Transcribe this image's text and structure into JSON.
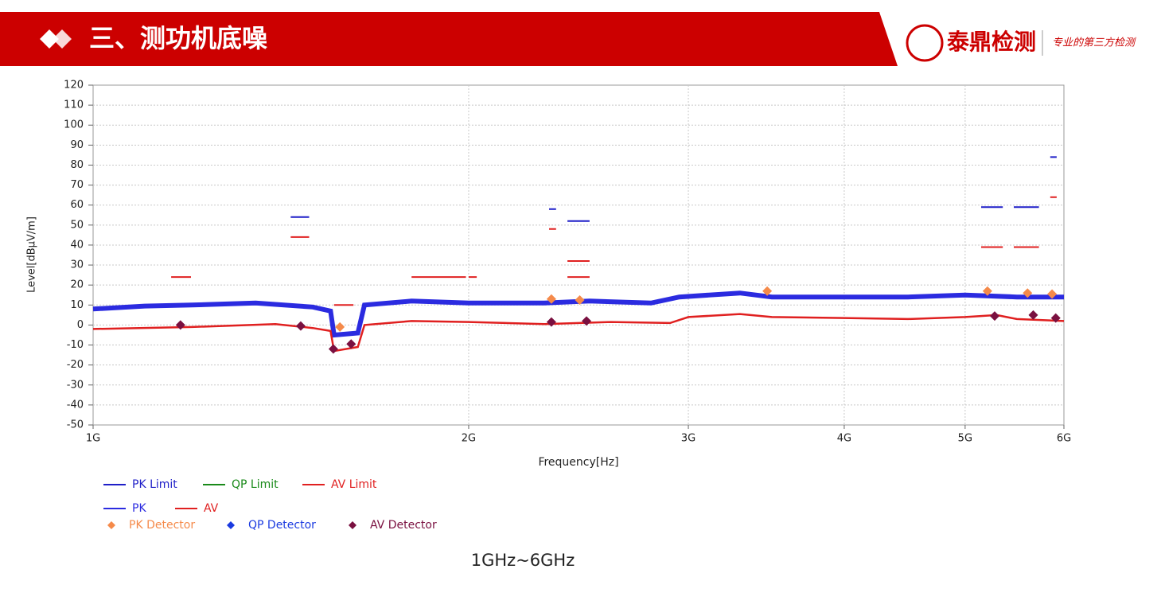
{
  "header": {
    "title": "三、测功机底噪",
    "logo_name": "泰鼎检测",
    "logo_slogan": "专业的第三方检测"
  },
  "chart_data": {
    "type": "line",
    "xlabel": "Frequency[Hz]",
    "ylabel": "Level[dBµV/m]",
    "xscale": "log",
    "grid": true,
    "xlim": [
      1000000000.0,
      6000000000.0
    ],
    "ylim": [
      -50,
      120
    ],
    "xticks": [
      {
        "value": 1000000000.0,
        "label": "1G"
      },
      {
        "value": 2000000000.0,
        "label": "2G"
      },
      {
        "value": 3000000000.0,
        "label": "3G"
      },
      {
        "value": 4000000000.0,
        "label": "4G"
      },
      {
        "value": 5000000000.0,
        "label": "5G"
      },
      {
        "value": 6000000000.0,
        "label": "6G"
      }
    ],
    "yticks": [
      -50,
      -40,
      -30,
      -20,
      -10,
      0,
      10,
      20,
      30,
      40,
      50,
      60,
      70,
      80,
      90,
      100,
      110,
      120
    ],
    "series": [
      {
        "name": "PK Limit",
        "color": "#1f1fc8",
        "kind": "limit",
        "x": [
          1440000000.0,
          1490000000.0,
          null,
          2320000000.0,
          2350000000.0,
          null,
          2400000000.0,
          2500000000.0,
          null,
          5150000000.0,
          5360000000.0,
          null,
          5470000000.0,
          5730000000.0,
          null,
          5850000000.0,
          5920000000.0
        ],
        "values": [
          54,
          54,
          null,
          58,
          58,
          null,
          52,
          52,
          null,
          59,
          59,
          null,
          59,
          59,
          null,
          84,
          84
        ]
      },
      {
        "name": "QP Limit",
        "color": "#1a8a1a",
        "kind": "limit",
        "x": [],
        "values": []
      },
      {
        "name": "AV Limit",
        "color": "#e02020",
        "kind": "limit",
        "x": [
          1155000000.0,
          1198000000.0,
          null,
          1440000000.0,
          1490000000.0,
          null,
          1560000000.0,
          1617000000.0,
          null,
          1800000000.0,
          1990000000.0,
          null,
          2000000000.0,
          2030000000.0,
          null,
          2320000000.0,
          2350000000.0,
          null,
          2400000000.0,
          2500000000.0,
          null,
          2400000000.0,
          2500000000.0,
          null,
          5150000000.0,
          5360000000.0,
          null,
          5470000000.0,
          5730000000.0,
          null,
          5850000000.0,
          5920000000.0
        ],
        "values": [
          24,
          24,
          null,
          44,
          44,
          null,
          10,
          10,
          null,
          24,
          24,
          null,
          24,
          24,
          null,
          48,
          48,
          null,
          32,
          32,
          null,
          24,
          24,
          null,
          39,
          39,
          null,
          39,
          39,
          null,
          64,
          64
        ]
      },
      {
        "name": "PK",
        "color": "#2b2be0",
        "kind": "trace",
        "x": [
          1000000000.0,
          1100000000.0,
          1200000000.0,
          1350000000.0,
          1500000000.0,
          1550000000.0,
          1560000000.0,
          1630000000.0,
          1650000000.0,
          1800000000.0,
          2000000000.0,
          2300000000.0,
          2500000000.0,
          2800000000.0,
          2950000000.0,
          3300000000.0,
          3500000000.0,
          4000000000.0,
          4500000000.0,
          5000000000.0,
          5500000000.0,
          6000000000.0
        ],
        "values": [
          8,
          9.5,
          10,
          11,
          9,
          7,
          -5,
          -4,
          10,
          12,
          11,
          11,
          12,
          11,
          14,
          16,
          14,
          14,
          14,
          15,
          14,
          14
        ]
      },
      {
        "name": "AV",
        "color": "#e02020",
        "kind": "trace",
        "x": [
          1000000000.0,
          1200000000.0,
          1400000000.0,
          1500000000.0,
          1550000000.0,
          1560000000.0,
          1630000000.0,
          1650000000.0,
          1800000000.0,
          2000000000.0,
          2300000000.0,
          2600000000.0,
          2900000000.0,
          3000000000.0,
          3300000000.0,
          3500000000.0,
          4000000000.0,
          4500000000.0,
          5000000000.0,
          5300000000.0,
          5500000000.0,
          6000000000.0
        ],
        "values": [
          -2,
          -1,
          0.5,
          -1.5,
          -3,
          -13,
          -11,
          0,
          2,
          1.5,
          0.5,
          1.5,
          1,
          4,
          5.5,
          4,
          3.5,
          3,
          4,
          5,
          3,
          2
        ]
      },
      {
        "name": "PK Detector",
        "color": "#f58a4a",
        "kind": "marker",
        "x": [
          1577000000.0,
          2330000000.0,
          2455000000.0,
          3470000000.0,
          5210000000.0,
          5610000000.0,
          5870000000.0
        ],
        "values": [
          -1,
          13,
          12.5,
          17,
          17,
          16,
          15.5
        ]
      },
      {
        "name": "QP Detector",
        "color": "#1a3ae0",
        "kind": "marker",
        "x": [],
        "values": []
      },
      {
        "name": "AV Detector",
        "color": "#7a1040",
        "kind": "marker",
        "x": [
          1175000000.0,
          1467000000.0,
          1558000000.0,
          1610000000.0,
          2330000000.0,
          2486000000.0,
          5280000000.0,
          5670000000.0,
          5910000000.0
        ],
        "values": [
          0,
          -0.5,
          -12,
          -9.5,
          1.5,
          2,
          4.5,
          5,
          3.5
        ]
      }
    ]
  },
  "caption": "1GHz~6GHz"
}
